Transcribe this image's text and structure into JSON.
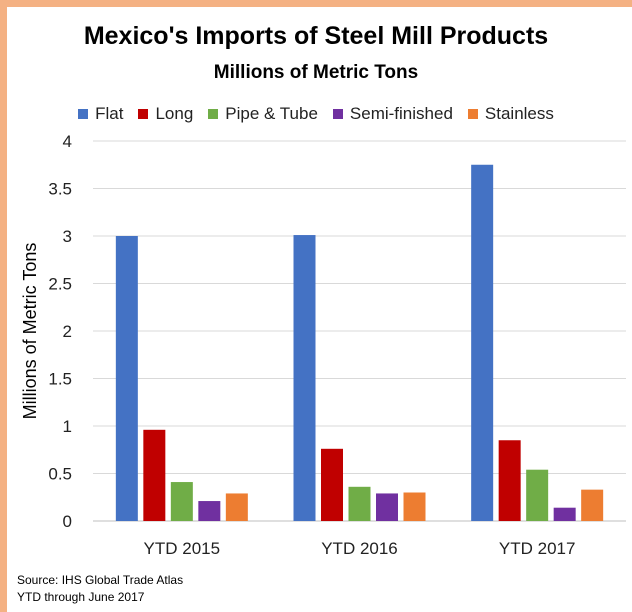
{
  "chart_data": {
    "type": "bar",
    "title": "Mexico's Imports of Steel Mill Products",
    "subtitle": "Millions of Metric Tons",
    "ylabel": "Millions of Metric Tons",
    "xlabel": "",
    "ylim": [
      0,
      4
    ],
    "yticks": [
      "0",
      "0.5",
      "1",
      "1.5",
      "2",
      "2.5",
      "3",
      "3.5",
      "4"
    ],
    "grid": true,
    "legend_position": "top",
    "categories": [
      "YTD 2015",
      "YTD 2016",
      "YTD 2017"
    ],
    "series": [
      {
        "name": "Flat",
        "color": "#4472c4",
        "values": [
          3.0,
          3.01,
          3.75
        ]
      },
      {
        "name": "Long",
        "color": "#c00000",
        "values": [
          0.96,
          0.76,
          0.85
        ]
      },
      {
        "name": "Pipe & Tube",
        "color": "#70ad47",
        "values": [
          0.41,
          0.36,
          0.54
        ]
      },
      {
        "name": "Semi-finished",
        "color": "#7030a0",
        "values": [
          0.21,
          0.29,
          0.14
        ]
      },
      {
        "name": "Stainless",
        "color": "#ed7d31",
        "values": [
          0.29,
          0.3,
          0.33
        ]
      }
    ]
  },
  "footer": {
    "source": "Source: IHS Global Trade Atlas",
    "note": "YTD through June 2017"
  }
}
